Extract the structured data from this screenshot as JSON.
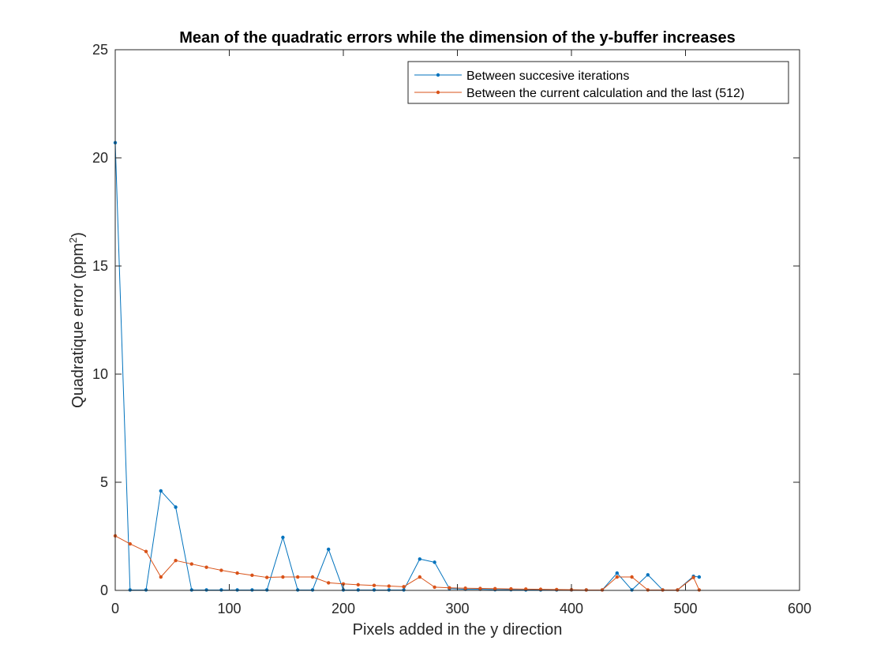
{
  "chart_data": {
    "type": "line",
    "title": "Mean of the quadratic errors while the dimension of the y-buffer increases",
    "xlabel": "Pixels added in the y direction",
    "ylabel": "Quadratique error (ppm",
    "ylabel_superscript": "2",
    "ylabel_suffix": ")",
    "xlim": [
      0,
      600
    ],
    "ylim": [
      0,
      25
    ],
    "xticks": [
      0,
      100,
      200,
      300,
      400,
      500,
      600
    ],
    "yticks": [
      0,
      5,
      10,
      15,
      20,
      25
    ],
    "grid": false,
    "legend_position": "top-right",
    "x": [
      0,
      13,
      27,
      40,
      53,
      67,
      80,
      93,
      107,
      120,
      133,
      147,
      160,
      173,
      187,
      200,
      213,
      227,
      240,
      253,
      267,
      280,
      293,
      307,
      320,
      333,
      347,
      360,
      373,
      387,
      400,
      413,
      427,
      440,
      453,
      467,
      480,
      493,
      507,
      512
    ],
    "series": [
      {
        "name": "Between succesive iterations",
        "color": "#0072BD",
        "values": [
          20.7,
          0.02,
          0.02,
          4.6,
          3.85,
          0.02,
          0.02,
          0.02,
          0.02,
          0.02,
          0.02,
          2.45,
          0.02,
          0.02,
          1.9,
          0.02,
          0.02,
          0.02,
          0.02,
          0.02,
          1.45,
          1.3,
          0.08,
          0.05,
          0.05,
          0.03,
          0.03,
          0.02,
          0.02,
          0.02,
          0.02,
          0.02,
          0.02,
          0.8,
          0.02,
          0.72,
          0.02,
          0.02,
          0.65,
          0.62
        ]
      },
      {
        "name": "Between the current calculation and the last (512)",
        "color": "#D95319",
        "values": [
          2.52,
          2.15,
          1.8,
          0.62,
          1.38,
          1.22,
          1.07,
          0.93,
          0.8,
          0.7,
          0.6,
          0.62,
          0.62,
          0.62,
          0.35,
          0.3,
          0.26,
          0.23,
          0.2,
          0.17,
          0.62,
          0.15,
          0.12,
          0.1,
          0.09,
          0.08,
          0.07,
          0.06,
          0.05,
          0.04,
          0.03,
          0.02,
          0.02,
          0.62,
          0.62,
          0.02,
          0.02,
          0.02,
          0.6,
          0.02
        ]
      }
    ]
  }
}
